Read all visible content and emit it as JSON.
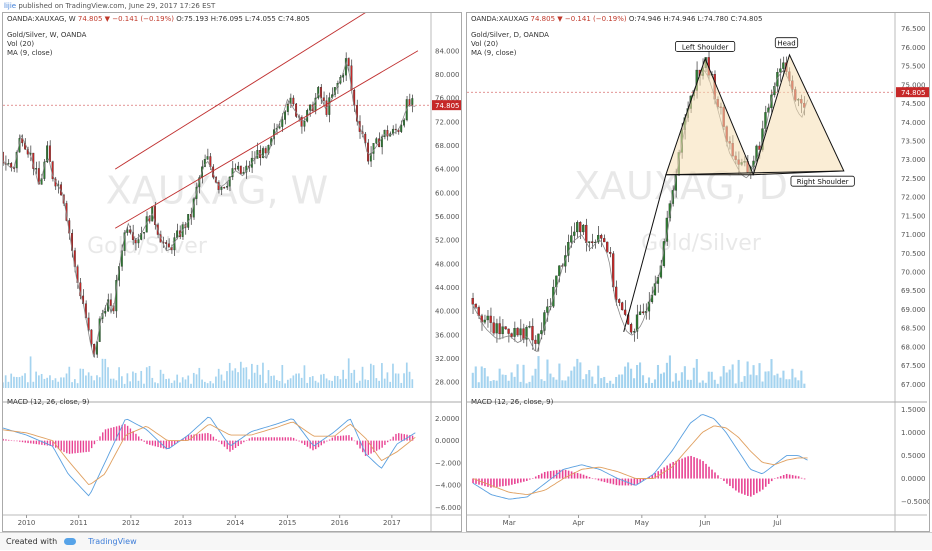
{
  "header": {
    "author": "lijie",
    "published_text": "published on TradingView.com, June 29, 2017 17:26 EST"
  },
  "footer": {
    "created_with": "Created with",
    "brand": "TradingView"
  },
  "colors": {
    "up": "#2e7d32",
    "down": "#c62828",
    "volume": "#7ec1e8",
    "macd_line": "#5aa0e0",
    "signal_line": "#e0a060",
    "histogram": "#e84393",
    "channel": "#c03030",
    "pattern_fill": "#f5deb3",
    "price_label": "#c62828"
  },
  "chart_data": [
    {
      "type": "candlestick",
      "symbol_line": {
        "symbol": "OANDA:XAUXAG, W",
        "price": "74.805",
        "change": "−0.141 (−0.19%)",
        "o": "O:75.193",
        "h": "H:76.095",
        "l": "L:74.055",
        "c": "C:74.805"
      },
      "title": "Gold/Silver, W, OANDA",
      "indicators": [
        "Vol (20)",
        "MA (9, close)"
      ],
      "watermark": {
        "symbol": "XAUXAG, W",
        "name": "Gold/Silver"
      },
      "current_price_label": "74.805",
      "price_axis": [
        "84.000",
        "80.000",
        "76.000",
        "72.000",
        "68.000",
        "64.000",
        "60.000",
        "56.000",
        "52.000",
        "48.000",
        "44.000",
        "40.000",
        "36.000",
        "32.000",
        "28.000"
      ],
      "ylim": [
        27,
        87
      ],
      "time_axis": [
        "2010",
        "2011",
        "2012",
        "2013",
        "2014",
        "2015",
        "2016",
        "2017"
      ],
      "price_path": [
        [
          2009.5,
          66
        ],
        [
          2009.75,
          64
        ],
        [
          2009.9,
          70
        ],
        [
          2010.1,
          66
        ],
        [
          2010.25,
          61
        ],
        [
          2010.4,
          67
        ],
        [
          2010.5,
          63
        ],
        [
          2010.7,
          60
        ],
        [
          2010.85,
          52
        ],
        [
          2010.95,
          46
        ],
        [
          2011.1,
          41
        ],
        [
          2011.22,
          35
        ],
        [
          2011.3,
          32
        ],
        [
          2011.4,
          38
        ],
        [
          2011.55,
          42
        ],
        [
          2011.65,
          39
        ],
        [
          2011.75,
          46
        ],
        [
          2011.85,
          52
        ],
        [
          2011.95,
          55
        ],
        [
          2012.1,
          52
        ],
        [
          2012.25,
          54
        ],
        [
          2012.4,
          57
        ],
        [
          2012.55,
          53
        ],
        [
          2012.7,
          50
        ],
        [
          2012.85,
          52
        ],
        [
          2013.0,
          54
        ],
        [
          2013.15,
          56
        ],
        [
          2013.3,
          62
        ],
        [
          2013.45,
          66
        ],
        [
          2013.55,
          64
        ],
        [
          2013.7,
          61
        ],
        [
          2013.85,
          62
        ],
        [
          2014.0,
          64
        ],
        [
          2014.15,
          63
        ],
        [
          2014.3,
          65
        ],
        [
          2014.45,
          67
        ],
        [
          2014.6,
          66
        ],
        [
          2014.75,
          70
        ],
        [
          2014.9,
          73
        ],
        [
          2015.0,
          76
        ],
        [
          2015.15,
          74
        ],
        [
          2015.3,
          72
        ],
        [
          2015.45,
          74
        ],
        [
          2015.6,
          77
        ],
        [
          2015.75,
          74
        ],
        [
          2015.9,
          77
        ],
        [
          2016.05,
          80
        ],
        [
          2016.15,
          83
        ],
        [
          2016.25,
          76
        ],
        [
          2016.35,
          72
        ],
        [
          2016.45,
          70
        ],
        [
          2016.55,
          66
        ],
        [
          2016.7,
          68
        ],
        [
          2016.85,
          70
        ],
        [
          2017.0,
          70
        ],
        [
          2017.15,
          71
        ],
        [
          2017.3,
          75
        ],
        [
          2017.45,
          74.8
        ]
      ],
      "channel": {
        "lower": [
          [
            2011.7,
            54
          ],
          [
            2017.5,
            84
          ]
        ],
        "upper": [
          [
            2011.7,
            64
          ],
          [
            2017.5,
            96
          ]
        ]
      },
      "macd": {
        "title": "MACD (12, 26, close, 9)",
        "axis": [
          "2.0000",
          "0.0000",
          "−2.0000",
          "−4.0000",
          "−6.0000"
        ],
        "ylim": [
          -6.5,
          3.2
        ],
        "macd_path": [
          [
            2009.5,
            1.2
          ],
          [
            2010.0,
            0.5
          ],
          [
            2010.5,
            -0.5
          ],
          [
            2010.8,
            -3
          ],
          [
            2011.2,
            -5
          ],
          [
            2011.5,
            -2
          ],
          [
            2011.9,
            2
          ],
          [
            2012.3,
            1
          ],
          [
            2012.7,
            -0.8
          ],
          [
            2013.1,
            0.5
          ],
          [
            2013.5,
            2.2
          ],
          [
            2013.9,
            -0.5
          ],
          [
            2014.3,
            0.8
          ],
          [
            2014.8,
            1.5
          ],
          [
            2015.1,
            2
          ],
          [
            2015.5,
            -0.5
          ],
          [
            2015.9,
            0.8
          ],
          [
            2016.2,
            2
          ],
          [
            2016.5,
            -1.2
          ],
          [
            2016.8,
            -2.5
          ],
          [
            2017.1,
            -0.3
          ],
          [
            2017.45,
            0.7
          ]
        ],
        "signal_path": [
          [
            2009.5,
            1.0
          ],
          [
            2010.0,
            0.7
          ],
          [
            2010.5,
            0
          ],
          [
            2010.8,
            -1.8
          ],
          [
            2011.2,
            -4
          ],
          [
            2011.5,
            -3
          ],
          [
            2011.9,
            0.5
          ],
          [
            2012.3,
            1.3
          ],
          [
            2012.7,
            0
          ],
          [
            2013.1,
            0
          ],
          [
            2013.5,
            1.5
          ],
          [
            2013.9,
            0.5
          ],
          [
            2014.3,
            0.5
          ],
          [
            2014.8,
            1.2
          ],
          [
            2015.1,
            1.7
          ],
          [
            2015.5,
            0.4
          ],
          [
            2015.9,
            0.4
          ],
          [
            2016.2,
            1.5
          ],
          [
            2016.5,
            0.2
          ],
          [
            2016.8,
            -1.8
          ],
          [
            2017.1,
            -1
          ],
          [
            2017.45,
            0.3
          ]
        ]
      },
      "xlim": [
        2009.55,
        2017.75
      ]
    },
    {
      "type": "candlestick",
      "symbol_line": {
        "symbol": "OANDA:XAUXAG",
        "price": "74.805",
        "change": "−0.141 (−0.19%)",
        "o": "O:74.946",
        "h": "H:74.946",
        "l": "L:74.780",
        "c": "C:74.805"
      },
      "title": "Gold/Silver, D, OANDA",
      "indicators": [
        "Vol (20)",
        "MA (9, close)"
      ],
      "watermark": {
        "symbol": "XAUXAG, D",
        "name": "Gold/Silver"
      },
      "current_price_label": "74.805",
      "price_axis": [
        "76.500",
        "76.000",
        "75.500",
        "75.000",
        "74.500",
        "74.000",
        "73.500",
        "73.000",
        "72.500",
        "72.000",
        "71.500",
        "71.000",
        "70.500",
        "70.000",
        "69.500",
        "69.000",
        "68.500",
        "68.000",
        "67.500",
        "67.000"
      ],
      "ylim": [
        66.9,
        76.6
      ],
      "time_axis": [
        "Mar",
        "Apr",
        "May",
        "Jun",
        "Jul"
      ],
      "annotations": {
        "left_shoulder": "Left Shoulder",
        "head": "Head",
        "right_shoulder": "Right Shoulder"
      },
      "price_path": [
        [
          0,
          69.3
        ],
        [
          4,
          68.7
        ],
        [
          8,
          68.4
        ],
        [
          12,
          68.5
        ],
        [
          15,
          68.3
        ],
        [
          18,
          68.5
        ],
        [
          21,
          68.0
        ],
        [
          24,
          68.8
        ],
        [
          27,
          69.6
        ],
        [
          30,
          70.4
        ],
        [
          33,
          71.0
        ],
        [
          36,
          71.2
        ],
        [
          39,
          70.8
        ],
        [
          42,
          71.1
        ],
        [
          45,
          70.6
        ],
        [
          47,
          69.5
        ],
        [
          49,
          69.0
        ],
        [
          51,
          68.6
        ],
        [
          53,
          68.5
        ],
        [
          56,
          68.8
        ],
        [
          59,
          69.5
        ],
        [
          62,
          70.2
        ],
        [
          65,
          71.5
        ],
        [
          67,
          72.6
        ],
        [
          69,
          73.5
        ],
        [
          71,
          74.3
        ],
        [
          73,
          75.0
        ],
        [
          75,
          75.4
        ],
        [
          77,
          75.6
        ],
        [
          79,
          75.2
        ],
        [
          81,
          74.6
        ],
        [
          83,
          74.0
        ],
        [
          85,
          73.4
        ],
        [
          87,
          73.1
        ],
        [
          89,
          72.8
        ],
        [
          91,
          72.7
        ],
        [
          93,
          73.0
        ],
        [
          95,
          73.4
        ],
        [
          97,
          74.0
        ],
        [
          99,
          74.8
        ],
        [
          101,
          75.4
        ],
        [
          103,
          75.6
        ],
        [
          105,
          75.3
        ],
        [
          107,
          74.6
        ],
        [
          109,
          74.3
        ],
        [
          111,
          74.8
        ]
      ],
      "pattern": {
        "triangle1": [
          [
            64,
            72.6
          ],
          [
            77,
            75.7
          ],
          [
            93,
            72.6
          ]
        ],
        "triangle2": [
          [
            93,
            72.6
          ],
          [
            105,
            75.8
          ],
          [
            123,
            72.7
          ]
        ],
        "neckline": [
          [
            64,
            72.6
          ],
          [
            123,
            72.7
          ]
        ],
        "trend": [
          [
            50,
            68.4
          ],
          [
            64,
            72.6
          ]
        ]
      },
      "macd": {
        "title": "MACD (12, 26, close, 9)",
        "axis": [
          "1.5000",
          "1.0000",
          "0.5000",
          "0.0000",
          "−0.5000"
        ],
        "ylim": [
          -0.75,
          1.6
        ],
        "macd_path": [
          [
            0,
            -0.1
          ],
          [
            6,
            -0.35
          ],
          [
            12,
            -0.45
          ],
          [
            18,
            -0.4
          ],
          [
            24,
            -0.1
          ],
          [
            30,
            0.2
          ],
          [
            36,
            0.3
          ],
          [
            42,
            0.2
          ],
          [
            48,
            0
          ],
          [
            54,
            -0.15
          ],
          [
            60,
            0.1
          ],
          [
            66,
            0.6
          ],
          [
            72,
            1.2
          ],
          [
            76,
            1.4
          ],
          [
            80,
            1.3
          ],
          [
            84,
            1.0
          ],
          [
            88,
            0.6
          ],
          [
            92,
            0.2
          ],
          [
            96,
            0.1
          ],
          [
            100,
            0.3
          ],
          [
            104,
            0.5
          ],
          [
            108,
            0.5
          ],
          [
            111,
            0.4
          ]
        ],
        "signal_path": [
          [
            0,
            0
          ],
          [
            6,
            -0.15
          ],
          [
            12,
            -0.3
          ],
          [
            18,
            -0.35
          ],
          [
            24,
            -0.25
          ],
          [
            30,
            0
          ],
          [
            36,
            0.2
          ],
          [
            42,
            0.25
          ],
          [
            48,
            0.15
          ],
          [
            54,
            0
          ],
          [
            60,
            0
          ],
          [
            66,
            0.25
          ],
          [
            72,
            0.7
          ],
          [
            76,
            1.0
          ],
          [
            80,
            1.15
          ],
          [
            84,
            1.1
          ],
          [
            88,
            0.9
          ],
          [
            92,
            0.6
          ],
          [
            96,
            0.35
          ],
          [
            100,
            0.3
          ],
          [
            104,
            0.4
          ],
          [
            108,
            0.45
          ],
          [
            111,
            0.45
          ]
        ]
      },
      "xlim": [
        -2,
        140
      ],
      "time_positions": [
        12,
        35,
        56,
        77,
        101
      ]
    }
  ]
}
